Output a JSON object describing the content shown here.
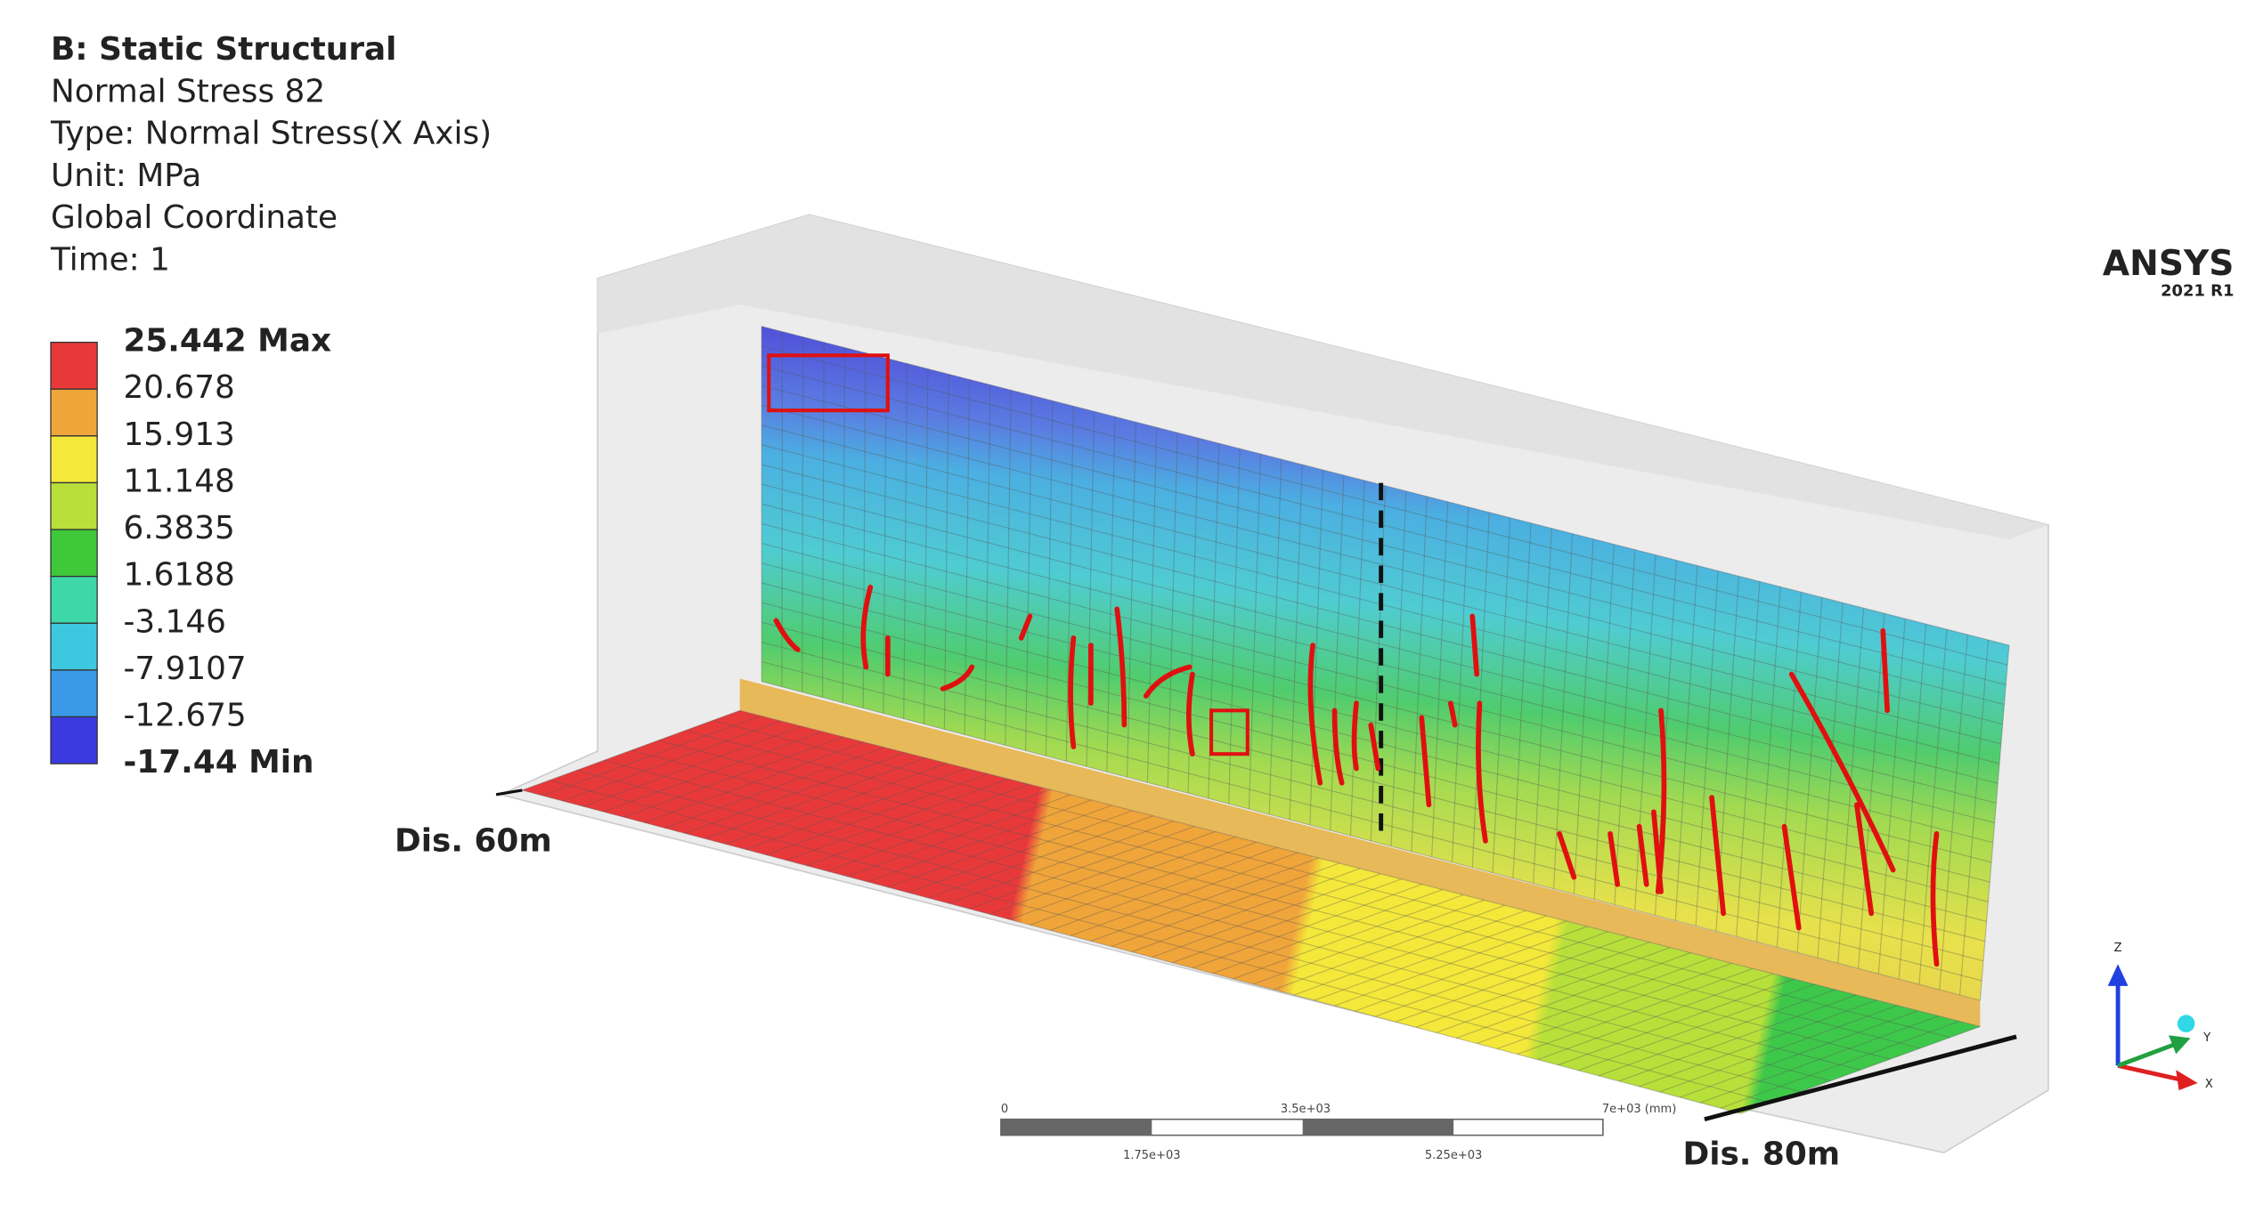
{
  "header": {
    "title": "B: Static Structural",
    "lines": [
      "Normal Stress 82",
      "Type: Normal Stress(X Axis)",
      "Unit: MPa",
      "Global Coordinate",
      "Time: 1"
    ]
  },
  "legend": {
    "labels": [
      "25.442 Max",
      "20.678",
      "15.913",
      "11.148",
      "6.3835",
      "1.6188",
      "-3.146",
      "-7.9107",
      "-12.675",
      "-17.44 Min"
    ],
    "colors": [
      "#e8393a",
      "#f0a53a",
      "#f4e83a",
      "#b8e03a",
      "#3ec83a",
      "#3ed8a8",
      "#3ec8e0",
      "#3a9ae8",
      "#3a3ae0"
    ]
  },
  "logo": {
    "name": "ANSYS",
    "version": "2021 R1"
  },
  "labels": {
    "start": "Dis. 60m",
    "end": "Dis. 80m"
  },
  "scale_bar": {
    "top": [
      "0",
      "3.5e+03",
      "7e+03 (mm)"
    ],
    "bottom": [
      "1.75e+03",
      "5.25e+03"
    ]
  },
  "triad": {
    "z": "Z",
    "y": "Y",
    "x": "X"
  }
}
